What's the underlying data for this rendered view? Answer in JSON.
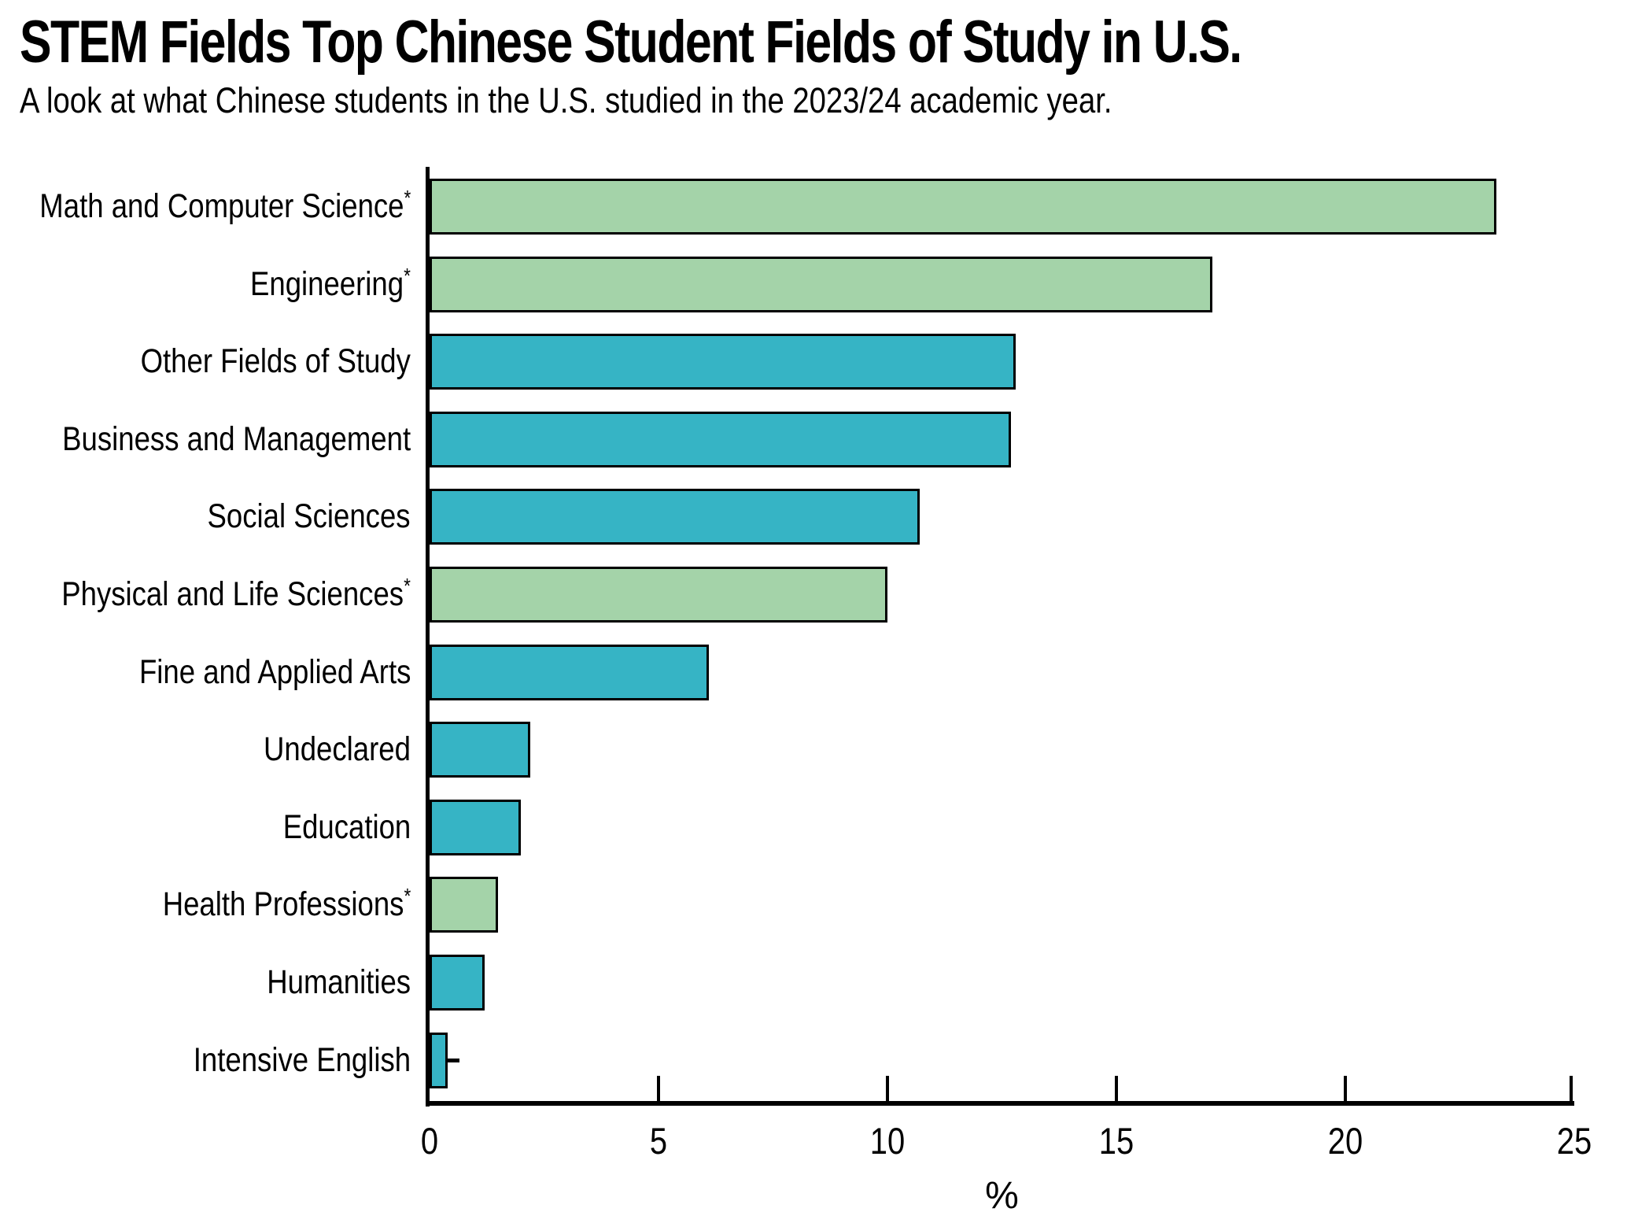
{
  "chart_data": {
    "type": "bar",
    "orientation": "horizontal",
    "title": "STEM Fields Top Chinese Student Fields of Study in U.S.",
    "subtitle": "A look at what Chinese students in the U.S. studied in the 2023/24 academic year.",
    "categories": [
      "Math and Computer Science*",
      "Engineering*",
      "Other Fields of Study",
      "Business and Management",
      "Social Sciences",
      "Physical and Life Sciences*",
      "Fine and Applied Arts",
      "Undeclared",
      "Education",
      "Health Professions*",
      "Humanities",
      "Intensive English"
    ],
    "values": [
      23.3,
      17.1,
      12.8,
      12.7,
      10.7,
      10.0,
      6.1,
      2.2,
      2.0,
      1.5,
      1.2,
      0.4
    ],
    "bar_colors": [
      "#a4d3a9",
      "#a4d3a9",
      "#36b4c5",
      "#36b4c5",
      "#36b4c5",
      "#a4d3a9",
      "#36b4c5",
      "#36b4c5",
      "#36b4c5",
      "#a4d3a9",
      "#36b4c5",
      "#36b4c5"
    ],
    "colors": {
      "stem_green": "#a4d3a9",
      "other_teal": "#36b4c5",
      "axis_black": "#000000"
    },
    "xlabel": "%",
    "xlim": [
      0,
      25
    ],
    "xticks": [
      0,
      5,
      10,
      15,
      20,
      25
    ],
    "grid": false,
    "legend": "none"
  }
}
